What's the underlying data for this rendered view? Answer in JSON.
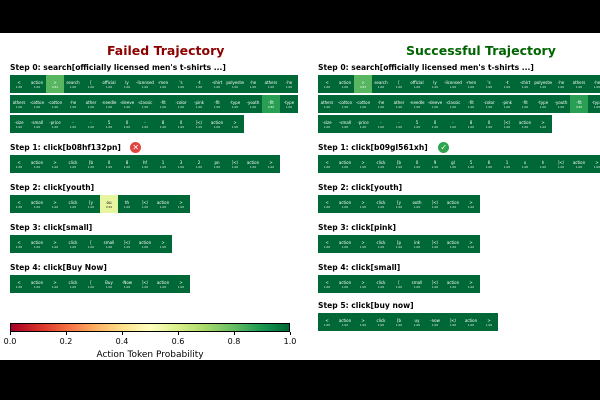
{
  "colors": {
    "failed_title": "#8b0000",
    "success_title": "#006400",
    "fail_marker": "#e0443e",
    "success_marker": "#2ea44f"
  },
  "panels": {
    "failed": {
      "title": "Failed Trajectory",
      "steps": [
        {
          "label": "Step 0: search[officially licensed men's t-shirts ...]",
          "rows": [
            [
              [
                "<",
                "1.00"
              ],
              [
                "action",
                "1.00"
              ],
              [
                ">",
                "0.82"
              ],
              [
                "search",
                "1.00"
              ],
              [
                "[",
                "1.00"
              ],
              [
                "official",
                "1.00"
              ],
              [
                "ly",
                "1.00"
              ],
              [
                "-licensed",
                "1.00"
              ],
              [
                "-men",
                "1.00"
              ],
              [
                "'s",
                "1.00"
              ],
              [
                "-t",
                "1.00"
              ],
              [
                "-shirt",
                "1.00"
              ],
              [
                "-polyester",
                "1.00"
              ],
              [
                "-he",
                "1.00"
              ],
              [
                "athers",
                "1.00"
              ],
              [
                "-he",
                "1.00"
              ]
            ],
            [
              [
                "athers",
                "1.00"
              ],
              [
                "-cotton",
                "1.00"
              ],
              [
                "-cotton",
                "1.00"
              ],
              [
                "-he",
                "1.00"
              ],
              [
                "ather",
                "1.00"
              ],
              [
                "-needle",
                "1.00"
              ],
              [
                "-sleeve",
                "1.00"
              ],
              [
                "-classic",
                "1.00"
              ],
              [
                "-fit",
                "1.00"
              ],
              [
                "-color",
                "1.00"
              ],
              [
                "-pink",
                "1.00"
              ],
              [
                "-fit",
                "1.00"
              ],
              [
                "-type",
                "1.00"
              ],
              [
                "-youth",
                "1.00"
              ],
              [
                "-fit",
                "0.88"
              ],
              [
                "-type",
                "1.00"
              ]
            ],
            [
              [
                "-size",
                "1.00"
              ],
              [
                "-small",
                "1.00"
              ],
              [
                "-price",
                "1.00"
              ],
              [
                "-",
                "1.00"
              ],
              [
                "-",
                "1.00"
              ],
              [
                "5",
                "1.00"
              ],
              [
                "0",
                "1.00"
              ],
              [
                "-",
                "1.00"
              ],
              [
                "8",
                "1.00"
              ],
              [
                "0",
                "1.00"
              ],
              [
                "]</",
                "1.00"
              ],
              [
                "action",
                "1.00"
              ],
              [
                ">",
                "1.00"
              ]
            ]
          ]
        },
        {
          "label": "Step 1: click[b08hf132pn]",
          "marker": "fail",
          "rows": [
            [
              [
                "<",
                "1.00"
              ],
              [
                "action",
                "1.00"
              ],
              [
                ">",
                "1.00"
              ],
              [
                "click",
                "1.00"
              ],
              [
                "[b",
                "1.00"
              ],
              [
                "0",
                "1.00"
              ],
              [
                "8",
                "1.00"
              ],
              [
                "hf",
                "1.00"
              ],
              [
                "1",
                "1.00"
              ],
              [
                "3",
                "1.00"
              ],
              [
                "2",
                "1.00"
              ],
              [
                "pn",
                "1.00"
              ],
              [
                "]</",
                "1.00"
              ],
              [
                "action",
                "1.00"
              ],
              [
                ">",
                "1.00"
              ]
            ]
          ]
        },
        {
          "label": "Step 2: click[youth]",
          "rows": [
            [
              [
                "<",
                "1.00"
              ],
              [
                "action",
                "1.00"
              ],
              [
                ">",
                "1.00"
              ],
              [
                "click",
                "1.00"
              ],
              [
                "[y",
                "1.00"
              ],
              [
                "ou",
                "0.56"
              ],
              [
                "th",
                "1.00"
              ],
              [
                "]</",
                "1.00"
              ],
              [
                "action",
                "1.00"
              ],
              [
                ">",
                "1.00"
              ]
            ]
          ]
        },
        {
          "label": "Step 3: click[small]",
          "rows": [
            [
              [
                "<",
                "1.00"
              ],
              [
                "action",
                "1.00"
              ],
              [
                ">",
                "1.00"
              ],
              [
                "click",
                "1.00"
              ],
              [
                "[",
                "1.00"
              ],
              [
                "small",
                "1.00"
              ],
              [
                "]</",
                "1.00"
              ],
              [
                "action",
                "1.00"
              ],
              [
                ">",
                "1.00"
              ]
            ]
          ]
        },
        {
          "label": "Step 4: click[Buy Now]",
          "rows": [
            [
              [
                "<",
                "1.00"
              ],
              [
                "action",
                "1.00"
              ],
              [
                ">",
                "1.00"
              ],
              [
                "click",
                "1.00"
              ],
              [
                "[",
                "1.00"
              ],
              [
                "Buy",
                "1.00"
              ],
              [
                "-Now",
                "1.00"
              ],
              [
                "]</",
                "1.00"
              ],
              [
                "action",
                "1.00"
              ],
              [
                ">",
                "1.00"
              ]
            ]
          ]
        }
      ]
    },
    "success": {
      "title": "Successful Trajectory",
      "steps": [
        {
          "label": "Step 0: search[officially licensed men's t-shirts ...]",
          "rows": [
            [
              [
                "<",
                "1.00"
              ],
              [
                "action",
                "1.00"
              ],
              [
                ">",
                "0.82"
              ],
              [
                "search",
                "1.00"
              ],
              [
                "[",
                "1.00"
              ],
              [
                "official",
                "1.00"
              ],
              [
                "ly",
                "1.00"
              ],
              [
                "-licensed",
                "1.00"
              ],
              [
                "-men",
                "1.00"
              ],
              [
                "'s",
                "1.00"
              ],
              [
                "-t",
                "1.00"
              ],
              [
                "-shirt",
                "1.00"
              ],
              [
                "-polyester",
                "1.00"
              ],
              [
                "-he",
                "1.00"
              ],
              [
                "athers",
                "1.00"
              ],
              [
                "-he",
                "1.00"
              ]
            ],
            [
              [
                "athers",
                "1.00"
              ],
              [
                "-cotton",
                "1.00"
              ],
              [
                "-cotton",
                "1.00"
              ],
              [
                "-he",
                "1.00"
              ],
              [
                "ather",
                "1.00"
              ],
              [
                "-needle",
                "1.00"
              ],
              [
                "-sleeve",
                "1.00"
              ],
              [
                "-classic",
                "1.00"
              ],
              [
                "-fit",
                "1.00"
              ],
              [
                "-color",
                "1.00"
              ],
              [
                "-pink",
                "1.00"
              ],
              [
                "-fit",
                "1.00"
              ],
              [
                "-type",
                "1.00"
              ],
              [
                "-youth",
                "1.00"
              ],
              [
                "-fit",
                "0.88"
              ],
              [
                "-type",
                "1.00"
              ]
            ],
            [
              [
                "-size",
                "1.00"
              ],
              [
                "-small",
                "1.00"
              ],
              [
                "-price",
                "1.00"
              ],
              [
                "-",
                "1.00"
              ],
              [
                "-",
                "1.00"
              ],
              [
                "5",
                "1.00"
              ],
              [
                "0",
                "1.00"
              ],
              [
                "-",
                "1.00"
              ],
              [
                "8",
                "1.00"
              ],
              [
                "0",
                "1.00"
              ],
              [
                "]</",
                "1.00"
              ],
              [
                "action",
                "1.00"
              ],
              [
                ">",
                "1.00"
              ]
            ]
          ]
        },
        {
          "label": "Step 1: click[b09gl561xh]",
          "marker": "success",
          "rows": [
            [
              [
                "<",
                "1.00"
              ],
              [
                "action",
                "1.00"
              ],
              [
                ">",
                "1.00"
              ],
              [
                "click",
                "1.00"
              ],
              [
                "[b",
                "1.00"
              ],
              [
                "0",
                "1.00"
              ],
              [
                "9",
                "1.00"
              ],
              [
                "gl",
                "1.00"
              ],
              [
                "5",
                "1.00"
              ],
              [
                "6",
                "1.00"
              ],
              [
                "1",
                "1.00"
              ],
              [
                "x",
                "1.00"
              ],
              [
                "h",
                "1.00"
              ],
              [
                "]</",
                "1.00"
              ],
              [
                "action",
                "1.00"
              ],
              [
                ">",
                "1.00"
              ]
            ]
          ]
        },
        {
          "label": "Step 2: click[youth]",
          "rows": [
            [
              [
                "<",
                "1.00"
              ],
              [
                "action",
                "1.00"
              ],
              [
                ">",
                "1.00"
              ],
              [
                "click",
                "1.00"
              ],
              [
                "[y",
                "1.00"
              ],
              [
                "outh",
                "1.00"
              ],
              [
                "]</",
                "1.00"
              ],
              [
                "action",
                "1.00"
              ],
              [
                ">",
                "1.00"
              ]
            ]
          ]
        },
        {
          "label": "Step 3: click[pink]",
          "rows": [
            [
              [
                "<",
                "1.00"
              ],
              [
                "action",
                "1.00"
              ],
              [
                ">",
                "1.00"
              ],
              [
                "click",
                "1.00"
              ],
              [
                "[p",
                "1.00"
              ],
              [
                "ink",
                "1.00"
              ],
              [
                "]</",
                "1.00"
              ],
              [
                "action",
                "1.00"
              ],
              [
                ">",
                "1.00"
              ]
            ]
          ]
        },
        {
          "label": "Step 4: click[small]",
          "rows": [
            [
              [
                "<",
                "1.00"
              ],
              [
                "action",
                "1.00"
              ],
              [
                ">",
                "1.00"
              ],
              [
                "click",
                "1.00"
              ],
              [
                "[",
                "1.00"
              ],
              [
                "small",
                "1.00"
              ],
              [
                "]</",
                "1.00"
              ],
              [
                "action",
                "1.00"
              ],
              [
                ">",
                "1.00"
              ]
            ]
          ]
        },
        {
          "label": "Step 5: click[buy now]",
          "rows": [
            [
              [
                "<",
                "1.00"
              ],
              [
                "action",
                "1.00"
              ],
              [
                ">",
                "1.00"
              ],
              [
                "click",
                "1.00"
              ],
              [
                "[b",
                "1.00"
              ],
              [
                "uy",
                "1.00"
              ],
              [
                "-now",
                "1.00"
              ],
              [
                "]</",
                "1.00"
              ],
              [
                "action",
                "1.00"
              ],
              [
                ">",
                "1.00"
              ]
            ]
          ]
        }
      ]
    }
  },
  "colorbar": {
    "label": "Action Token Probability",
    "ticks": [
      "0.0",
      "0.2",
      "0.4",
      "0.6",
      "0.8",
      "1.0"
    ]
  }
}
